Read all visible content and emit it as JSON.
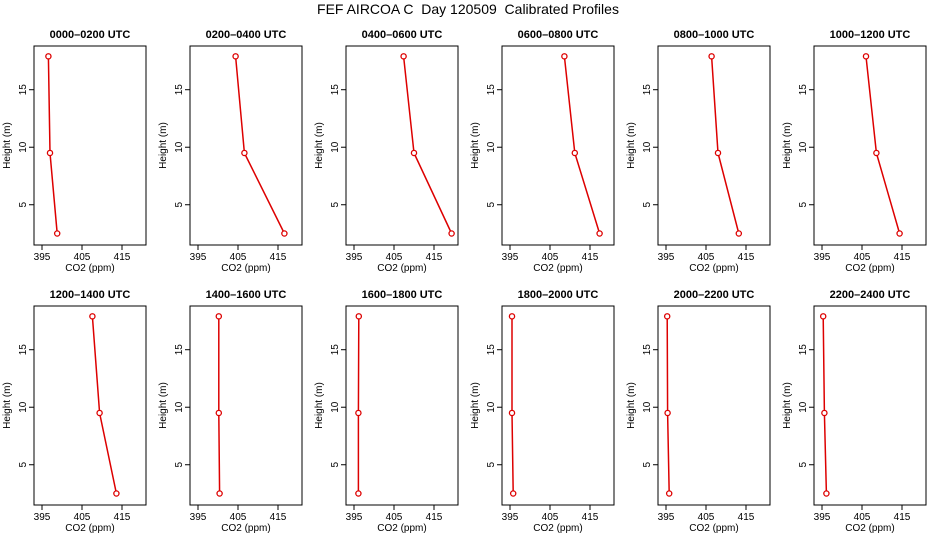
{
  "title": "FEF AIRCOA C  Day 120509  Calibrated Profiles",
  "colors": {
    "series": "#dd0000",
    "axis": "#000000"
  },
  "axes": {
    "xlabel": "CO2 (ppm)",
    "ylabel": "Height (m)",
    "xticks": [
      "395",
      "405",
      "415"
    ],
    "yticks": [
      "5",
      "10",
      "15"
    ]
  },
  "chart_data": [
    {
      "type": "line",
      "title": "0000–0200 UTC",
      "xlabel": "CO2 (ppm)",
      "ylabel": "Height (m)",
      "xlim": [
        393,
        421
      ],
      "ylim": [
        1.5,
        18.8
      ],
      "x": [
        396.6,
        397.0,
        398.8
      ],
      "y": [
        17.9,
        9.5,
        2.5
      ]
    },
    {
      "type": "line",
      "title": "0200–0400 UTC",
      "xlabel": "CO2 (ppm)",
      "ylabel": "Height (m)",
      "xlim": [
        393,
        421
      ],
      "ylim": [
        1.5,
        18.8
      ],
      "x": [
        404.4,
        406.6,
        416.6
      ],
      "y": [
        17.9,
        9.5,
        2.5
      ]
    },
    {
      "type": "line",
      "title": "0400–0600 UTC",
      "xlabel": "CO2 (ppm)",
      "ylabel": "Height (m)",
      "xlim": [
        393,
        421
      ],
      "ylim": [
        1.5,
        18.8
      ],
      "x": [
        407.4,
        410.0,
        419.4
      ],
      "y": [
        17.9,
        9.5,
        2.5
      ]
    },
    {
      "type": "line",
      "title": "0600–0800 UTC",
      "xlabel": "CO2 (ppm)",
      "ylabel": "Height (m)",
      "xlim": [
        393,
        421
      ],
      "ylim": [
        1.5,
        18.8
      ],
      "x": [
        408.6,
        411.2,
        417.4
      ],
      "y": [
        17.9,
        9.5,
        2.5
      ]
    },
    {
      "type": "line",
      "title": "0800–1000 UTC",
      "xlabel": "CO2 (ppm)",
      "ylabel": "Height (m)",
      "xlim": [
        393,
        421
      ],
      "ylim": [
        1.5,
        18.8
      ],
      "x": [
        406.4,
        408.0,
        413.2
      ],
      "y": [
        17.9,
        9.5,
        2.5
      ]
    },
    {
      "type": "line",
      "title": "1000–1200 UTC",
      "xlabel": "CO2 (ppm)",
      "ylabel": "Height (m)",
      "xlim": [
        393,
        421
      ],
      "ylim": [
        1.5,
        18.8
      ],
      "x": [
        406.0,
        408.6,
        414.4
      ],
      "y": [
        17.9,
        9.5,
        2.5
      ]
    },
    {
      "type": "line",
      "title": "1200–1400 UTC",
      "xlabel": "CO2 (ppm)",
      "ylabel": "Height (m)",
      "xlim": [
        393,
        421
      ],
      "ylim": [
        1.5,
        18.8
      ],
      "x": [
        407.6,
        409.4,
        413.6
      ],
      "y": [
        17.9,
        9.5,
        2.5
      ]
    },
    {
      "type": "line",
      "title": "1400–1600 UTC",
      "xlabel": "CO2 (ppm)",
      "ylabel": "Height (m)",
      "xlim": [
        393,
        421
      ],
      "ylim": [
        1.5,
        18.8
      ],
      "x": [
        400.2,
        400.2,
        400.4
      ],
      "y": [
        17.9,
        9.5,
        2.5
      ]
    },
    {
      "type": "line",
      "title": "1600–1800 UTC",
      "xlabel": "CO2 (ppm)",
      "ylabel": "Height (m)",
      "xlim": [
        393,
        421
      ],
      "ylim": [
        1.5,
        18.8
      ],
      "x": [
        396.2,
        396.1,
        396.1
      ],
      "y": [
        17.9,
        9.5,
        2.5
      ]
    },
    {
      "type": "line",
      "title": "1800–2000 UTC",
      "xlabel": "CO2 (ppm)",
      "ylabel": "Height (m)",
      "xlim": [
        393,
        421
      ],
      "ylim": [
        1.5,
        18.8
      ],
      "x": [
        395.5,
        395.5,
        395.8
      ],
      "y": [
        17.9,
        9.5,
        2.5
      ]
    },
    {
      "type": "line",
      "title": "2000–2200 UTC",
      "xlabel": "CO2 (ppm)",
      "ylabel": "Height (m)",
      "xlim": [
        393,
        421
      ],
      "ylim": [
        1.5,
        18.8
      ],
      "x": [
        395.3,
        395.4,
        395.8
      ],
      "y": [
        17.9,
        9.5,
        2.5
      ]
    },
    {
      "type": "line",
      "title": "2200–2400 UTC",
      "xlabel": "CO2 (ppm)",
      "ylabel": "Height (m)",
      "xlim": [
        393,
        421
      ],
      "ylim": [
        1.5,
        18.8
      ],
      "x": [
        395.3,
        395.6,
        396.1
      ],
      "y": [
        17.9,
        9.5,
        2.5
      ]
    }
  ]
}
